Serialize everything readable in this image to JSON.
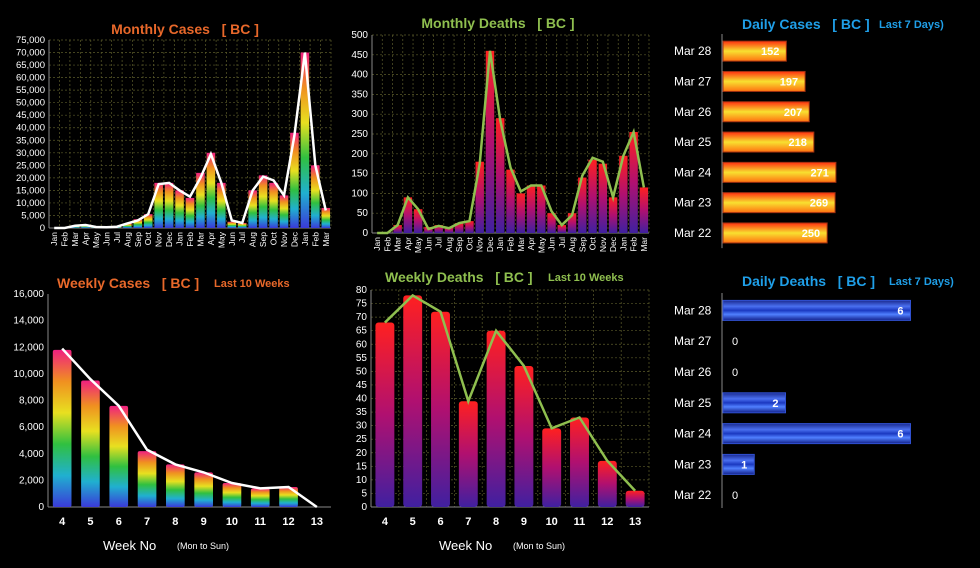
{
  "colors": {
    "monthly_cases_title": "#e8682a",
    "monthly_deaths_title": "#8fbf4f",
    "daily_title": "#1f9fe8",
    "weekly_cases_title": "#e8682a",
    "weekly_cases_sub": "#e8682a",
    "weekly_deaths_title": "#8fbf4f",
    "weekly_deaths_sub": "#8fbf4f",
    "grid": "#5a5a2a",
    "cases_line": "#ffffff",
    "deaths_line": "#8fbf4f"
  },
  "chart_data": [
    {
      "id": "monthly_cases",
      "type": "bar",
      "title": "Monthly Cases   [ BC ]",
      "categories": [
        "Jan",
        "Feb",
        "Mar",
        "Apr",
        "May",
        "Jun",
        "Jul",
        "Aug",
        "Sep",
        "Oct",
        "Nov",
        "Dec",
        "Jan",
        "Feb",
        "Mar",
        "Apr",
        "May",
        "Jun",
        "Jul",
        "Aug",
        "Sep",
        "Oct",
        "Nov",
        "Dec",
        "Jan",
        "Feb",
        "Mar"
      ],
      "values": [
        0,
        0,
        900,
        1200,
        400,
        300,
        500,
        1800,
        3500,
        5500,
        18000,
        18000,
        15000,
        12000,
        22000,
        30000,
        18000,
        2500,
        2000,
        15000,
        21000,
        18000,
        13000,
        38000,
        70000,
        25000,
        8000
      ],
      "line": [
        0,
        0,
        900,
        1200,
        400,
        300,
        500,
        1800,
        3000,
        5500,
        17500,
        18000,
        15000,
        12500,
        20000,
        29500,
        18000,
        3000,
        2000,
        15000,
        20500,
        19000,
        13000,
        37000,
        70000,
        25000,
        7000
      ],
      "ylim": [
        0,
        75000
      ],
      "yticks": [
        "0",
        "5,000",
        "10,000",
        "15,000",
        "20,000",
        "25,000",
        "30,000",
        "35,000",
        "40,000",
        "45,000",
        "50,000",
        "55,000",
        "60,000",
        "65,000",
        "70,000",
        "75,000"
      ],
      "grid": true
    },
    {
      "id": "monthly_deaths",
      "type": "bar",
      "title": "Monthly Deaths   [ BC ]",
      "categories": [
        "Jan",
        "Feb",
        "Mar",
        "Apr",
        "May",
        "Jun",
        "Jul",
        "Aug",
        "Sep",
        "Oct",
        "Nov",
        "Dec",
        "Jan",
        "Feb",
        "Mar",
        "Apr",
        "May",
        "Jun",
        "Jul",
        "Aug",
        "Sep",
        "Oct",
        "Nov",
        "Dec",
        "Jan",
        "Feb",
        "Mar"
      ],
      "values": [
        0,
        0,
        20,
        90,
        60,
        15,
        20,
        15,
        25,
        30,
        180,
        460,
        290,
        160,
        100,
        120,
        120,
        50,
        20,
        50,
        140,
        185,
        175,
        90,
        195,
        255,
        115
      ],
      "line": [
        0,
        0,
        20,
        90,
        60,
        10,
        18,
        12,
        25,
        30,
        175,
        460,
        285,
        165,
        105,
        120,
        120,
        55,
        20,
        45,
        145,
        190,
        180,
        90,
        195,
        255,
        115
      ],
      "ylim": [
        0,
        500
      ],
      "yticks": [
        "0",
        "50",
        "100",
        "150",
        "200",
        "250",
        "300",
        "350",
        "400",
        "450",
        "500"
      ],
      "grid": true
    },
    {
      "id": "daily_cases",
      "type": "bar",
      "orientation": "horizontal",
      "title": "Daily Cases   [ BC ]",
      "subtitle": "Last 7 Days)",
      "categories": [
        "Mar 28",
        "Mar 27",
        "Mar 26",
        "Mar 25",
        "Mar 24",
        "Mar 23",
        "Mar 22"
      ],
      "values": [
        152,
        197,
        207,
        218,
        271,
        269,
        250
      ],
      "labels": [
        "152",
        "197",
        "207",
        "218",
        "271",
        "269",
        "250"
      ],
      "xlim": [
        0,
        600
      ]
    },
    {
      "id": "weekly_cases",
      "type": "bar",
      "title": "Weekly Cases   [ BC ]",
      "subtitle": "Last 10 Weeks",
      "xlabel": "Week No",
      "xlabel_note": "(Mon to Sun)",
      "categories": [
        "4",
        "5",
        "6",
        "7",
        "8",
        "9",
        "10",
        "11",
        "12",
        "13"
      ],
      "values": [
        11800,
        9500,
        7600,
        4200,
        3200,
        2600,
        1800,
        1400,
        1500,
        0
      ],
      "line": [
        11900,
        9600,
        7600,
        4300,
        3200,
        2600,
        1800,
        1400,
        1500,
        0
      ],
      "ylim": [
        0,
        16000
      ],
      "yticks": [
        "0",
        "2,000",
        "4,000",
        "6,000",
        "8,000",
        "10,000",
        "12,000",
        "14,000",
        "16,000"
      ],
      "grid": false
    },
    {
      "id": "weekly_deaths",
      "type": "bar",
      "title": "Weekly Deaths   [ BC ]",
      "subtitle": "Last 10 Weeks",
      "xlabel": "Week No",
      "xlabel_note": "(Mon to Sun)",
      "categories": [
        "4",
        "5",
        "6",
        "7",
        "8",
        "9",
        "10",
        "11",
        "12",
        "13"
      ],
      "values": [
        68,
        78,
        72,
        39,
        65,
        52,
        29,
        33,
        17,
        6
      ],
      "line": [
        68,
        78,
        72,
        39,
        65,
        52,
        29,
        33,
        17,
        6
      ],
      "ylim": [
        0,
        80
      ],
      "yticks": [
        "0",
        "5",
        "10",
        "15",
        "20",
        "25",
        "30",
        "35",
        "40",
        "45",
        "50",
        "55",
        "60",
        "65",
        "70",
        "75",
        "80"
      ],
      "grid": true
    },
    {
      "id": "daily_deaths",
      "type": "bar",
      "orientation": "horizontal",
      "title": "Daily Deaths   [ BC ]",
      "subtitle": "Last 7 Days)",
      "categories": [
        "Mar 28",
        "Mar 27",
        "Mar 26",
        "Mar 25",
        "Mar 24",
        "Mar 23",
        "Mar 22"
      ],
      "values": [
        6,
        0,
        0,
        2,
        6,
        1,
        0
      ],
      "labels": [
        "6",
        "0",
        "0",
        "2",
        "6",
        "1",
        "0"
      ],
      "xlim": [
        0,
        8
      ]
    }
  ]
}
